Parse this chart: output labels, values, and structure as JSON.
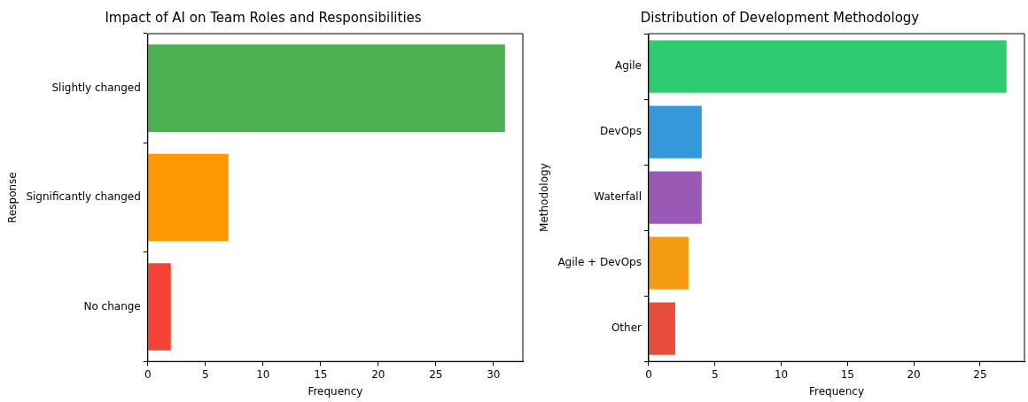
{
  "chart_data": [
    {
      "type": "bar",
      "orientation": "horizontal",
      "title": "Impact of AI on Team Roles and Responsibilities",
      "xlabel": "Frequency",
      "ylabel": "Response",
      "categories": [
        "Slightly changed",
        "Significantly changed",
        "No change"
      ],
      "values": [
        31,
        7,
        2
      ],
      "colors": [
        "#4caf50",
        "#ff9800",
        "#f44336"
      ],
      "xlim": [
        0,
        32.55
      ],
      "xticks": [
        0,
        5,
        10,
        15,
        20,
        25,
        30
      ],
      "grid": false,
      "legend": false
    },
    {
      "type": "bar",
      "orientation": "horizontal",
      "title": "Distribution of Development Methodology",
      "xlabel": "Frequency",
      "ylabel": "Methodology",
      "categories": [
        "Agile",
        "DevOps",
        "Waterfall",
        "Agile + DevOps",
        "Other"
      ],
      "values": [
        27,
        4,
        4,
        3,
        2
      ],
      "colors": [
        "#2ecc71",
        "#3498db",
        "#9b59b6",
        "#f39c12",
        "#e74c3c"
      ],
      "xlim": [
        0,
        28.35
      ],
      "xticks": [
        0,
        5,
        10,
        15,
        20,
        25
      ],
      "grid": false,
      "legend": false
    }
  ]
}
